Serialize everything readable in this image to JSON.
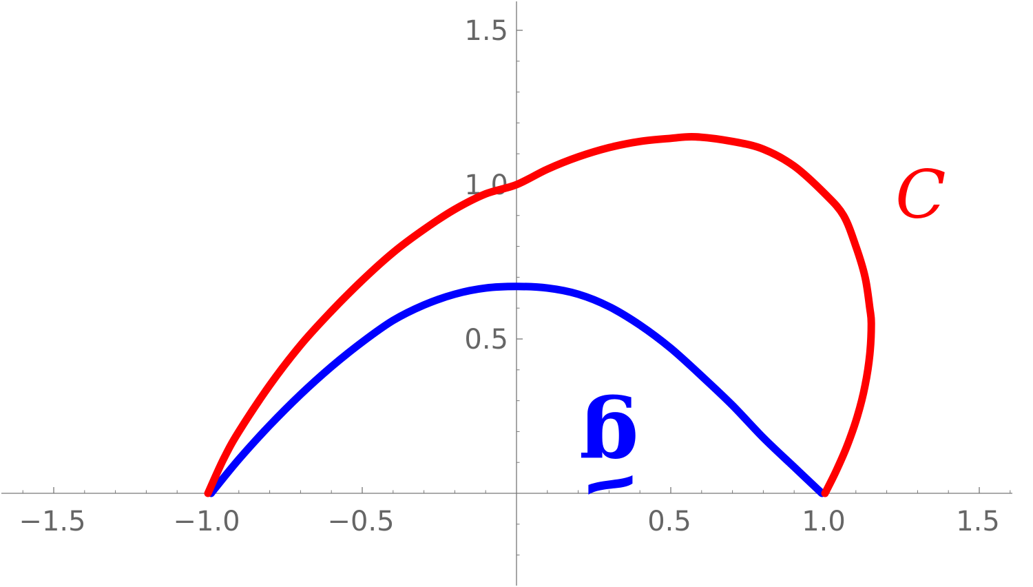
{
  "chart_data": {
    "type": "line",
    "title": "",
    "xlabel": "",
    "ylabel": "",
    "xlim": [
      -1.67,
      1.67
    ],
    "ylim": [
      -0.3,
      1.6
    ],
    "x_ticks": [
      {
        "value": -1.5,
        "label": "−1.5"
      },
      {
        "value": -1.0,
        "label": "−1.0"
      },
      {
        "value": -0.5,
        "label": "−0.5"
      },
      {
        "value": 0.5,
        "label": "0.5"
      },
      {
        "value": 1.0,
        "label": "1.0"
      },
      {
        "value": 1.5,
        "label": "1.5"
      }
    ],
    "y_ticks": [
      {
        "value": 0.5,
        "label": "0.5"
      },
      {
        "value": 1.0,
        "label": "1.0"
      },
      {
        "value": 1.5,
        "label": "1.5"
      }
    ],
    "grid": false,
    "series": [
      {
        "name": "C",
        "color": "#ff0000",
        "points": [
          [
            -1.0,
            0.0
          ],
          [
            -0.95,
            0.11
          ],
          [
            -0.9,
            0.2
          ],
          [
            -0.8,
            0.35
          ],
          [
            -0.7,
            0.48
          ],
          [
            -0.6,
            0.59
          ],
          [
            -0.5,
            0.69
          ],
          [
            -0.4,
            0.78
          ],
          [
            -0.3,
            0.855
          ],
          [
            -0.2,
            0.92
          ],
          [
            -0.1,
            0.97
          ],
          [
            0.0,
            1.0
          ],
          [
            0.1,
            1.05
          ],
          [
            0.2,
            1.09
          ],
          [
            0.3,
            1.12
          ],
          [
            0.4,
            1.14
          ],
          [
            0.5,
            1.15
          ],
          [
            0.58,
            1.155
          ],
          [
            0.7,
            1.14
          ],
          [
            0.8,
            1.115
          ],
          [
            0.9,
            1.06
          ],
          [
            1.0,
            0.97
          ],
          [
            1.06,
            0.9
          ],
          [
            1.1,
            0.8
          ],
          [
            1.13,
            0.7
          ],
          [
            1.145,
            0.6
          ],
          [
            1.15,
            0.55
          ],
          [
            1.145,
            0.45
          ],
          [
            1.13,
            0.35
          ],
          [
            1.105,
            0.25
          ],
          [
            1.07,
            0.15
          ],
          [
            1.035,
            0.07
          ],
          [
            1.0,
            0.0
          ]
        ]
      },
      {
        "name": "g",
        "color": "#0000ff",
        "points": [
          [
            -0.99,
            0.0
          ],
          [
            -0.9,
            0.11
          ],
          [
            -0.8,
            0.22
          ],
          [
            -0.7,
            0.32
          ],
          [
            -0.6,
            0.41
          ],
          [
            -0.5,
            0.49
          ],
          [
            -0.4,
            0.56
          ],
          [
            -0.3,
            0.61
          ],
          [
            -0.2,
            0.645
          ],
          [
            -0.1,
            0.665
          ],
          [
            0.0,
            0.67
          ],
          [
            0.1,
            0.665
          ],
          [
            0.2,
            0.645
          ],
          [
            0.3,
            0.605
          ],
          [
            0.4,
            0.545
          ],
          [
            0.5,
            0.47
          ],
          [
            0.6,
            0.38
          ],
          [
            0.7,
            0.285
          ],
          [
            0.8,
            0.18
          ],
          [
            0.9,
            0.085
          ],
          [
            0.99,
            0.0
          ]
        ]
      }
    ],
    "annotations": [
      {
        "text": "C",
        "x": 1.31,
        "y": 0.97,
        "color": "#ff0000",
        "style": "italic"
      },
      {
        "text": "g",
        "x": 0.3,
        "y": 0.17,
        "color": "#0000ff",
        "style": "bold"
      }
    ]
  }
}
